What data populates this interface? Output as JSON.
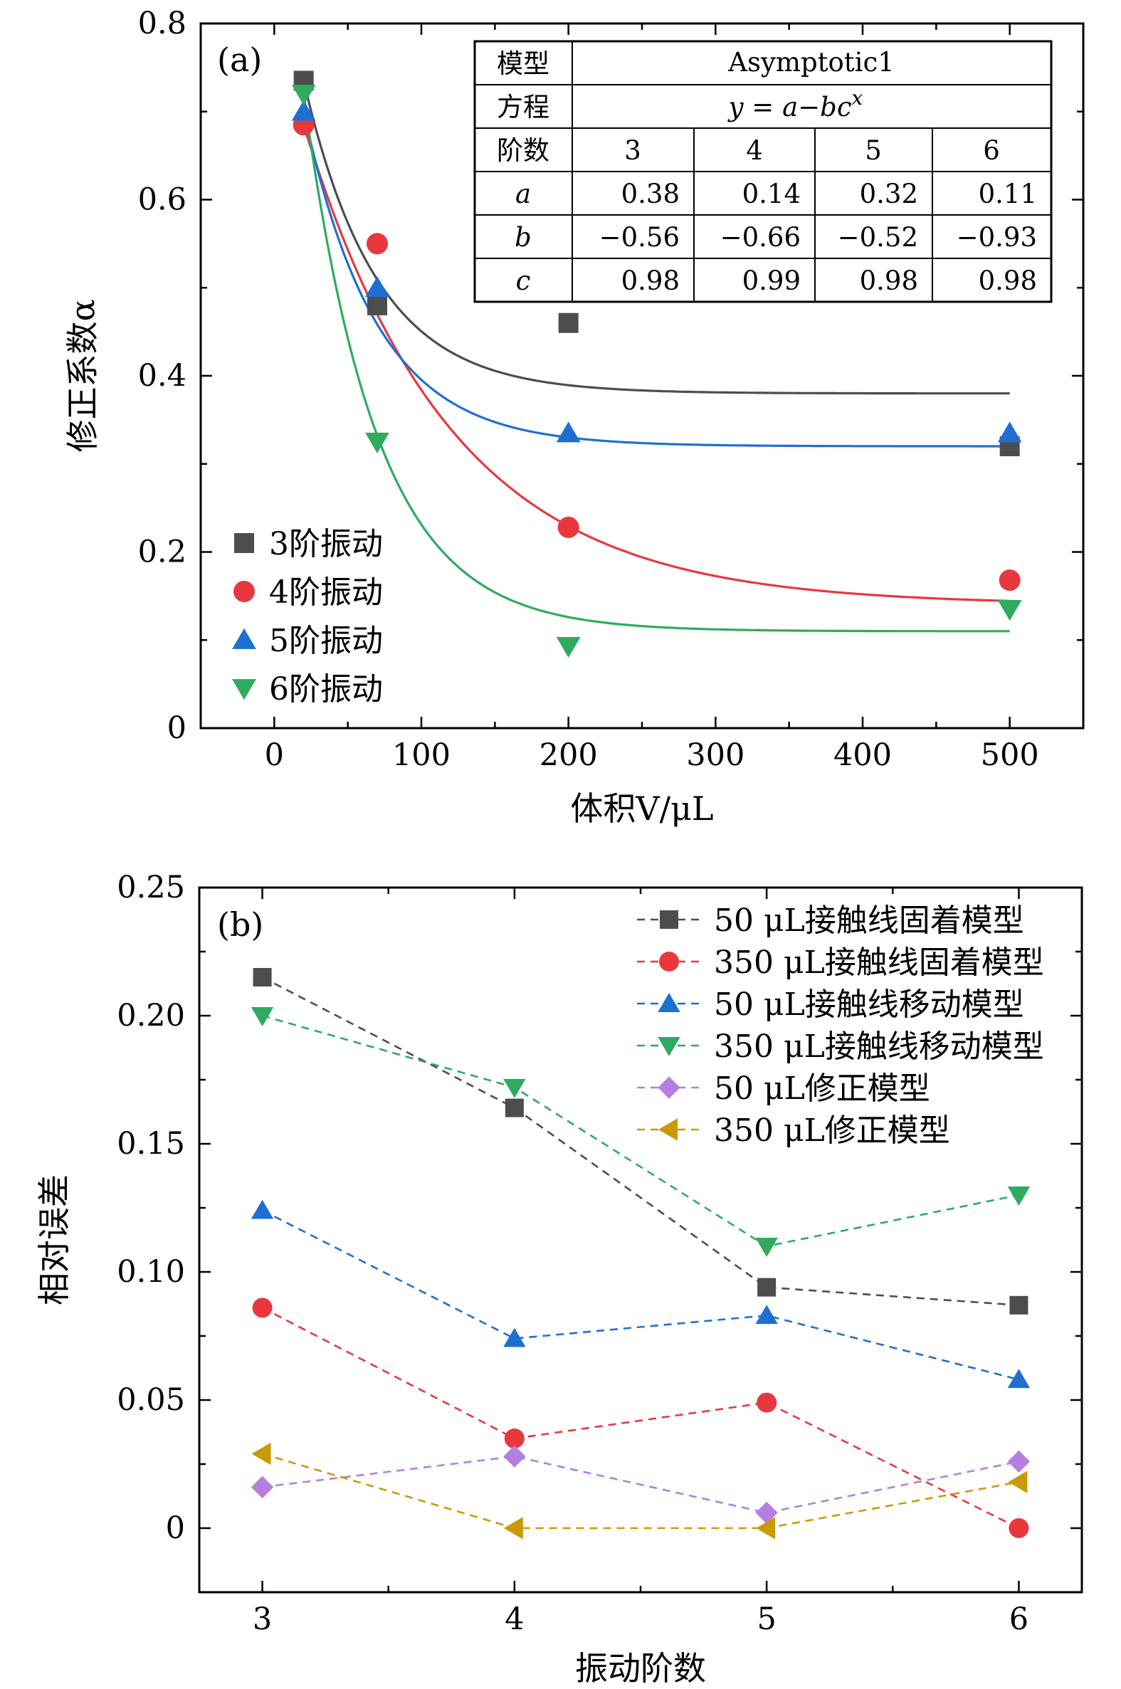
{
  "chart_data": [
    {
      "panel_label": "(a)",
      "type": "scatter",
      "xlabel": "体积V/μL",
      "ylabel": "修正系数α",
      "xlim": [
        -50,
        550
      ],
      "ylim": [
        0,
        0.8
      ],
      "x_ticks": [
        "0",
        "100",
        "200",
        "300",
        "400",
        "500"
      ],
      "y_ticks": [
        "0",
        "0.2",
        "0.4",
        "0.6",
        "0.8"
      ],
      "x": [
        20,
        70,
        200,
        500
      ],
      "legend_position": "bottom-left",
      "series": [
        {
          "name": "3阶振动",
          "marker": "square",
          "color": "#4d4d4d",
          "values": [
            0.735,
            0.48,
            0.46,
            0.32
          ],
          "fit": {
            "a": 0.38,
            "b": -0.56,
            "c": 0.98
          }
        },
        {
          "name": "4阶振动",
          "marker": "circle",
          "color": "#e8383d",
          "values": [
            0.685,
            0.55,
            0.228,
            0.168
          ],
          "fit": {
            "a": 0.14,
            "b": -0.66,
            "c": 0.99
          }
        },
        {
          "name": "5阶振动",
          "marker": "triangle-up",
          "color": "#1f6fd1",
          "values": [
            0.7,
            0.5,
            0.335,
            0.335
          ],
          "fit": {
            "a": 0.32,
            "b": -0.52,
            "c": 0.98
          }
        },
        {
          "name": "6阶振动",
          "marker": "triangle-down",
          "color": "#2eab5f",
          "values": [
            0.72,
            0.325,
            0.093,
            0.135
          ],
          "fit": {
            "a": 0.11,
            "b": -0.93,
            "c": 0.98
          }
        }
      ],
      "fit_table": {
        "row_labels": [
          "模型",
          "方程",
          "阶数",
          "a",
          "b",
          "c"
        ],
        "model": "Asymptotic1",
        "equation": "y = a−bc",
        "equation_sup": "x",
        "orders": [
          "3",
          "4",
          "5",
          "6"
        ],
        "a": [
          "0.38",
          "0.14",
          "0.32",
          "0.11"
        ],
        "b": [
          "−0.56",
          "−0.66",
          "−0.52",
          "−0.93"
        ],
        "c": [
          "0.98",
          "0.99",
          "0.98",
          "0.98"
        ]
      }
    },
    {
      "panel_label": "(b)",
      "type": "line",
      "xlabel": "振动阶数",
      "ylabel": "相对误差",
      "xlim": [
        2.75,
        6.25
      ],
      "ylim": [
        -0.025,
        0.25
      ],
      "x_ticks": [
        "3",
        "4",
        "5",
        "6"
      ],
      "y_ticks": [
        "0",
        "0.05",
        "0.10",
        "0.15",
        "0.20",
        "0.25"
      ],
      "x": [
        3,
        4,
        5,
        6
      ],
      "legend_position": "top-right",
      "series": [
        {
          "name": "50 μL接触线固着模型",
          "marker": "square",
          "color": "#4d4d4d",
          "values": [
            0.215,
            0.164,
            0.094,
            0.087
          ]
        },
        {
          "name": "350 μL接触线固着模型",
          "marker": "circle",
          "color": "#e8383d",
          "values": [
            0.086,
            0.035,
            0.049,
            0.0
          ]
        },
        {
          "name": "50 μL接触线移动模型",
          "marker": "triangle-up",
          "color": "#1f6fd1",
          "values": [
            0.124,
            0.074,
            0.083,
            0.058
          ]
        },
        {
          "name": "350 μL接触线移动模型",
          "marker": "triangle-down",
          "color": "#2eab5f",
          "values": [
            0.2,
            0.172,
            0.11,
            0.13
          ]
        },
        {
          "name": "50 μL修正模型",
          "marker": "diamond",
          "color": "#b57ee0",
          "values": [
            0.016,
            0.028,
            0.006,
            0.026
          ]
        },
        {
          "name": "350 μL修正模型",
          "marker": "triangle-left",
          "color": "#c99a06",
          "values": [
            0.029,
            0.0,
            0.0,
            0.018
          ]
        }
      ]
    }
  ]
}
